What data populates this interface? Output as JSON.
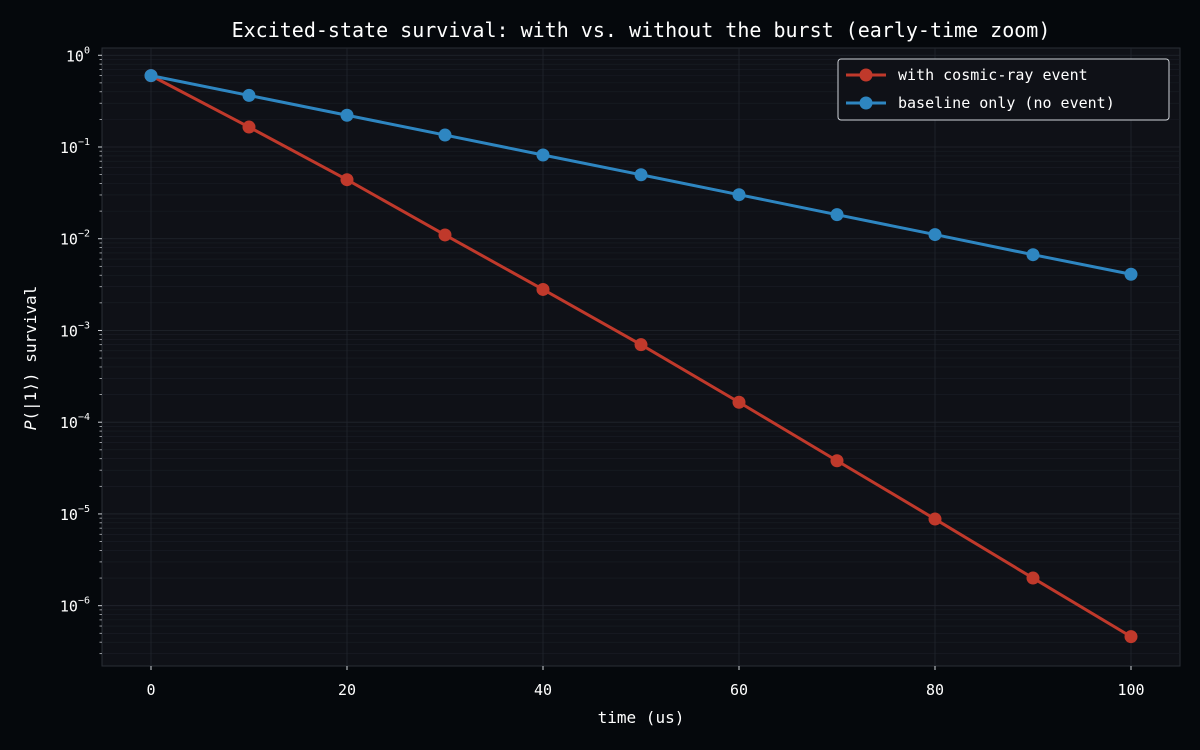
{
  "chart_data": {
    "type": "line",
    "title": "Excited-state survival: with vs. without the burst (early-time zoom)",
    "xlabel": "time (us)",
    "ylabel": "P(|1⟩) survival",
    "ylabel_italic": "P",
    "ylabel_rest": "(|1⟩) survival",
    "x_scale": "linear",
    "y_scale": "log",
    "xlim": [
      -5,
      105
    ],
    "ylim": [
      2.2e-07,
      1.2
    ],
    "x_ticks": [
      0,
      20,
      40,
      60,
      80,
      100
    ],
    "y_ticks": [
      {
        "value": 1,
        "base": "10",
        "exp": "0"
      },
      {
        "value": 0.1,
        "base": "10",
        "exp": "−1"
      },
      {
        "value": 0.01,
        "base": "10",
        "exp": "−2"
      },
      {
        "value": 0.001,
        "base": "10",
        "exp": "−3"
      },
      {
        "value": 0.0001,
        "base": "10",
        "exp": "−4"
      },
      {
        "value": 1e-05,
        "base": "10",
        "exp": "−5"
      },
      {
        "value": 1e-06,
        "base": "10",
        "exp": "−6"
      }
    ],
    "grid": true,
    "legend_position": "top-right",
    "x": [
      0,
      10,
      20,
      30,
      40,
      50,
      60,
      70,
      80,
      90,
      100
    ],
    "series": [
      {
        "name": "with cosmic-ray event",
        "color": "#c0392b",
        "values": [
          0.6,
          0.165,
          0.044,
          0.011,
          0.0028,
          0.0007,
          0.000165,
          3.8e-05,
          8.8e-06,
          2e-06,
          4.6e-07
        ]
      },
      {
        "name": "baseline only (no event)",
        "color": "#2e86c1",
        "values": [
          0.6,
          0.365,
          0.222,
          0.135,
          0.0818,
          0.0498,
          0.0302,
          0.0183,
          0.0111,
          0.0067,
          0.0041
        ]
      }
    ]
  }
}
